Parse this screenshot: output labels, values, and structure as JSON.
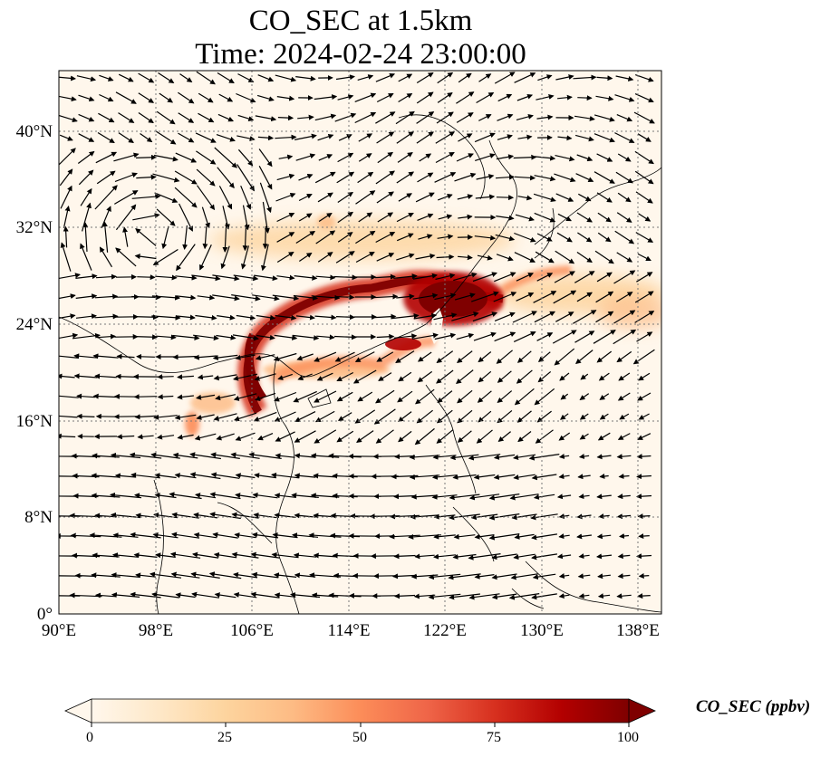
{
  "title": {
    "line1": "CO_SEC at 1.5km",
    "line2": "Time: 2024-02-24 23:00:00"
  },
  "map": {
    "lon_range": [
      90,
      140
    ],
    "lat_range": [
      0,
      45
    ],
    "lon_ticks": [
      "90°E",
      "98°E",
      "106°E",
      "114°E",
      "122°E",
      "130°E",
      "138°E"
    ],
    "lat_ticks": [
      "0°",
      "8°N",
      "16°N",
      "24°N",
      "32°N",
      "40°N"
    ],
    "gridlines": "dotted",
    "coastlines": true,
    "wind_vectors": true,
    "field": "CO_SEC",
    "plume": [
      {
        "lon": 106.5,
        "lat": 19.5
      },
      {
        "lon": 108.0,
        "lat": 22.5
      },
      {
        "lon": 111.0,
        "lat": 25.0
      },
      {
        "lon": 115.0,
        "lat": 26.5
      },
      {
        "lon": 119.0,
        "lat": 27.0
      },
      {
        "lon": 122.0,
        "lat": 26.5
      },
      {
        "lon": 124.0,
        "lat": 25.5
      }
    ]
  },
  "colorbar": {
    "label": "CO_SEC (ppbv)",
    "ticks": [
      "0",
      "25",
      "50",
      "75",
      "100"
    ],
    "range": [
      0,
      100
    ],
    "extend": "both",
    "cmap": "OrRd",
    "colors": [
      "#fff7ec",
      "#fee8c8",
      "#fdd49e",
      "#fdbb84",
      "#fc8d59",
      "#ef6548",
      "#d7301f",
      "#b30000",
      "#7f0000"
    ]
  }
}
